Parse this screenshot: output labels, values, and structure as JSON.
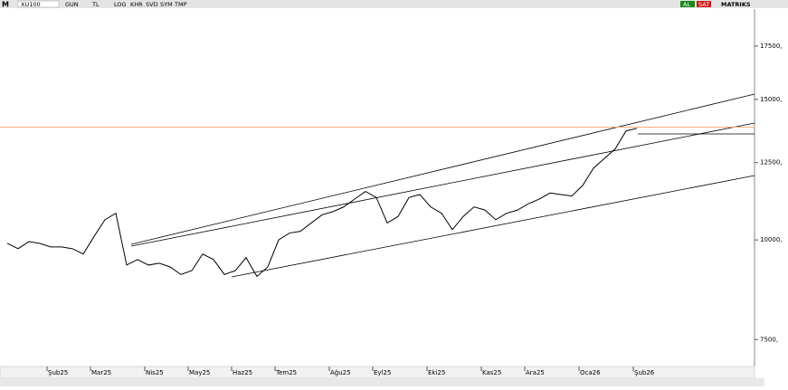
{
  "toolbar": {
    "logo": "M",
    "symbol": "XU100",
    "buttons": [
      "GUN",
      "TL",
      "LOG",
      "KHR",
      "SVD",
      "SYM",
      "TMP"
    ],
    "buy": "AL",
    "sell": "SAT",
    "brand": "MATRIKS"
  },
  "chart_data": {
    "type": "line",
    "color": "#000000",
    "categories": [
      null,
      null,
      null,
      null,
      "Şub25",
      null,
      null,
      null,
      "Mar25",
      null,
      null,
      null,
      null,
      "Nis25",
      null,
      null,
      null,
      "May25",
      null,
      null,
      null,
      "Haz25",
      null,
      null,
      null,
      "Tem25",
      null,
      null,
      null,
      null,
      "Ağu25",
      null,
      null,
      null,
      "Eyl25",
      null,
      null,
      null,
      null,
      "Eki25",
      null,
      null,
      null,
      null,
      "Kas25",
      null,
      null,
      null,
      "Ara25",
      null,
      null,
      null,
      null,
      "Oca26",
      null,
      null,
      null,
      null,
      "Şub26"
    ],
    "values": [
      9900,
      9750,
      9950,
      9900,
      9800,
      9800,
      9750,
      9600,
      10100,
      10600,
      10800,
      9300,
      9450,
      9300,
      9350,
      9250,
      9050,
      9150,
      9600,
      9450,
      9050,
      9150,
      9500,
      9000,
      9250,
      10000,
      10200,
      10250,
      10500,
      10750,
      10850,
      11000,
      11250,
      11500,
      11300,
      10500,
      10700,
      11300,
      11400,
      11000,
      10800,
      10300,
      10700,
      11000,
      10900,
      10600,
      10800,
      10900,
      11100,
      11250,
      11450,
      11400,
      11350,
      11700,
      12300,
      12650,
      13000,
      13700,
      13800
    ],
    "log_scale": true,
    "ylim": [
      6940,
      19470
    ],
    "yticks": [
      {
        "value": 7500,
        "label": "7500,"
      },
      {
        "value": 10000,
        "label": "10000,"
      },
      {
        "value": 12500,
        "label": "12500,"
      },
      {
        "value": 15000,
        "label": "15000,"
      },
      {
        "value": 17500,
        "label": "17500,"
      }
    ],
    "ref_line": 13850,
    "ref_color": "#f0a070"
  }
}
